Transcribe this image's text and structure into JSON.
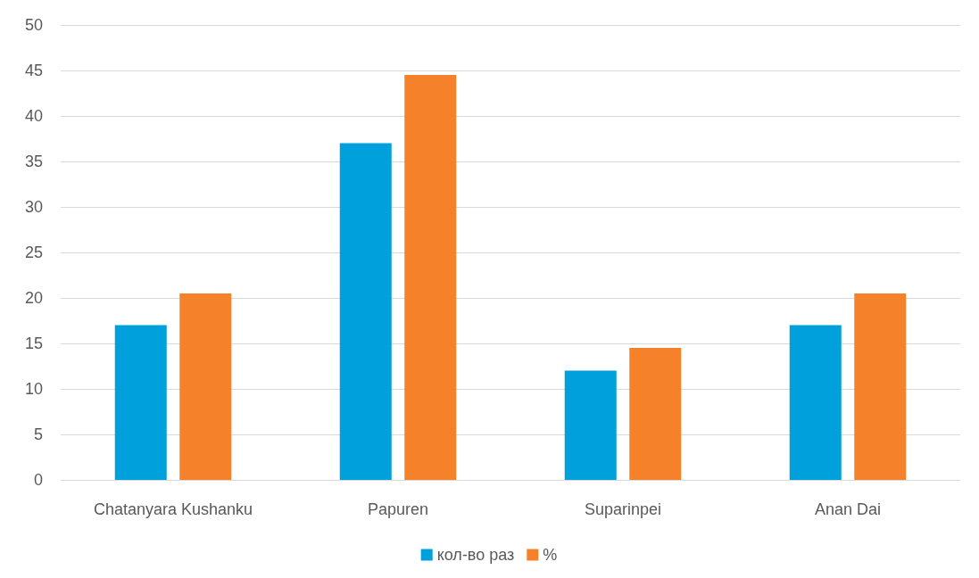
{
  "chart_data": {
    "type": "bar",
    "categories": [
      "Chatanyara Kushanku",
      "Papuren",
      "Suparinpei",
      "Anan Dai"
    ],
    "series": [
      {
        "name": "кол-во раз",
        "color": "#00a0dc",
        "values": [
          17,
          37,
          12,
          17
        ]
      },
      {
        "name": "%",
        "color": "#f5822a",
        "values": [
          20.5,
          44.5,
          14.5,
          20.5
        ]
      }
    ],
    "ylim": [
      0,
      50
    ],
    "yticks": [
      0,
      5,
      10,
      15,
      20,
      25,
      30,
      35,
      40,
      45,
      50
    ],
    "grid": "y",
    "legend": "bottom"
  }
}
